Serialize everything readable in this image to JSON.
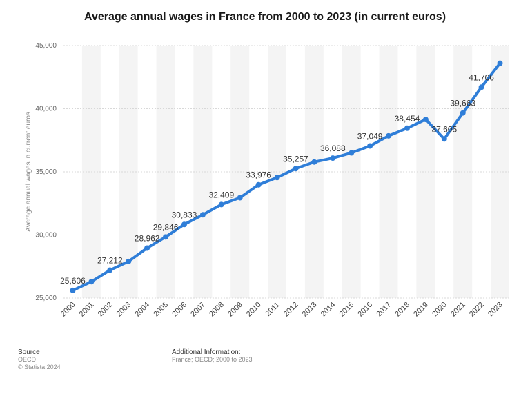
{
  "chart_data": {
    "type": "line",
    "title": "Average annual wages in France from 2000 to 2023 (in current euros)",
    "ylabel": "Average annual wages in current euros",
    "xlabel": "",
    "ylim": [
      25000,
      45000
    ],
    "yticks": [
      25000,
      30000,
      35000,
      40000,
      45000
    ],
    "ytick_labels": [
      "25,000",
      "30,000",
      "35,000",
      "40,000",
      "45,000"
    ],
    "grid": true,
    "line_color": "#2f7ed8",
    "categories": [
      "2000",
      "2001",
      "2002",
      "2003",
      "2004",
      "2005",
      "2006",
      "2007",
      "2008",
      "2009",
      "2010",
      "2011",
      "2012",
      "2013",
      "2014",
      "2015",
      "2016",
      "2017",
      "2018",
      "2019",
      "2020",
      "2021",
      "2022",
      "2023"
    ],
    "values": [
      25606,
      26300,
      27212,
      27900,
      28962,
      29846,
      30833,
      31600,
      32409,
      32950,
      33976,
      34550,
      35257,
      35780,
      36088,
      36500,
      37049,
      37850,
      38454,
      39150,
      37605,
      39663,
      41706,
      43600
    ],
    "data_labels": {
      "0": "25,606",
      "2": "27,212",
      "4": "28,962",
      "5": "29,846",
      "6": "30,833",
      "8": "32,409",
      "10": "33,976",
      "12": "35,257",
      "14": "36,088",
      "16": "37,049",
      "18": "38,454",
      "20": "37,605",
      "21": "39,663",
      "22": "41,706"
    }
  },
  "footer": {
    "source_heading": "Source",
    "source_line1": "OECD",
    "source_line2": "© Statista 2024",
    "info_heading": "Additional Information:",
    "info_text": "France; OECD; 2000 to 2023"
  }
}
